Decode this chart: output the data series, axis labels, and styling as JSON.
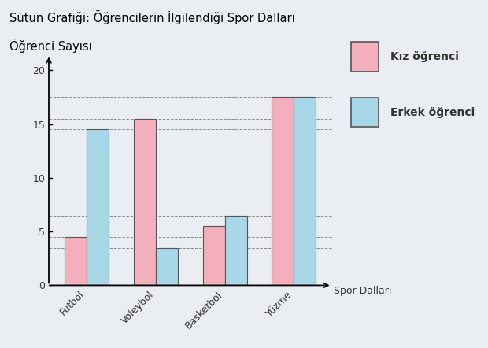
{
  "title_line1": "Sütun Grafiği: Öğrencilerin İlgilendiği Spor Dalları",
  "title_line2": "Öğrenci Sayısı",
  "categories": [
    "Futbol",
    "Voleybol",
    "Basketbol",
    "Yüzme"
  ],
  "kiz_values": [
    4.5,
    15.5,
    5.5,
    17.5
  ],
  "erkek_values": [
    14.5,
    3.5,
    6.5,
    17.5
  ],
  "kiz_color": "#F4AFBC",
  "erkek_color": "#A8D8E8",
  "kiz_edge_color": "#555555",
  "erkek_edge_color": "#555555",
  "xlabel": "Spor Dalları",
  "ylim": [
    0,
    22
  ],
  "yticks": [
    0,
    5,
    10,
    15,
    20
  ],
  "bar_width": 0.32,
  "legend_kiz": "Kız öğrenci",
  "legend_erkek": "Erkek öğrenci",
  "background_color": "#EAEDF2",
  "plot_bg_color": "#EAEDF2",
  "dashed_lines": [
    3.5,
    4.5,
    6.5,
    14.5,
    15.5,
    17.5
  ],
  "title_fontsize": 10.5,
  "tick_fontsize": 9,
  "legend_fontsize": 10
}
